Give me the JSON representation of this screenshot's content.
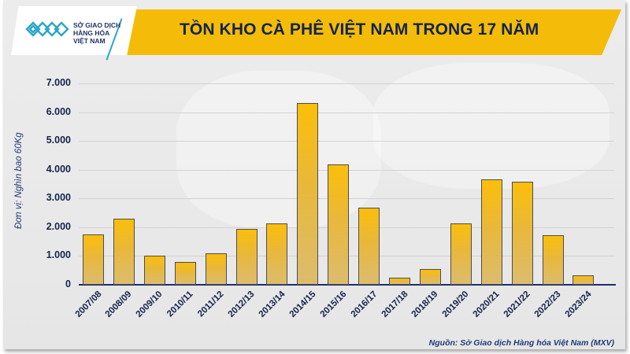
{
  "header": {
    "logo_text": [
      "SỞ GIAO DỊCH",
      "HÀNG HÓA",
      "VIỆT NAM"
    ],
    "title": "TỒN KHO CÀ PHÊ VIỆT NAM TRONG 17 NĂM"
  },
  "footer": {
    "source": "Nguồn: Sở Giao dịch Hàng hóa Việt Nam (MXV)"
  },
  "colors": {
    "banner": "#f4bc08",
    "title_text": "#14234f",
    "bar_top": "#fbbe0a",
    "bar_bottom": "#dcbc6e",
    "axis": "#1c2f6a",
    "logo_accent": "#29a6c9"
  },
  "chart_data": {
    "type": "bar",
    "title": "TỒN KHO CÀ PHÊ VIỆT NAM TRONG 17 NĂM",
    "xlabel": "",
    "ylabel": "Đơn vị: Nghìn bao 60Kg",
    "ylim": [
      0,
      7000
    ],
    "yticks": [
      "0",
      "1.000",
      "2.000",
      "3.000",
      "4.000",
      "5.000",
      "6.000",
      "7.000"
    ],
    "grid": true,
    "legend": null,
    "categories": [
      "2007/08",
      "2008/09",
      "2009/10",
      "2010/11",
      "2011/12",
      "2012/13",
      "2013/14",
      "2014/15",
      "2015/16",
      "2016/17",
      "2017/18",
      "2018/19",
      "2019/20",
      "2020/21",
      "2021/22",
      "2022/23",
      "2023/24"
    ],
    "values": [
      1750,
      2300,
      1000,
      800,
      1100,
      1950,
      2130,
      6320,
      4190,
      2690,
      250,
      550,
      2120,
      3660,
      3590,
      1720,
      340
    ],
    "source": "Nguồn: Sở Giao dịch Hàng hóa Việt Nam (MXV)"
  }
}
